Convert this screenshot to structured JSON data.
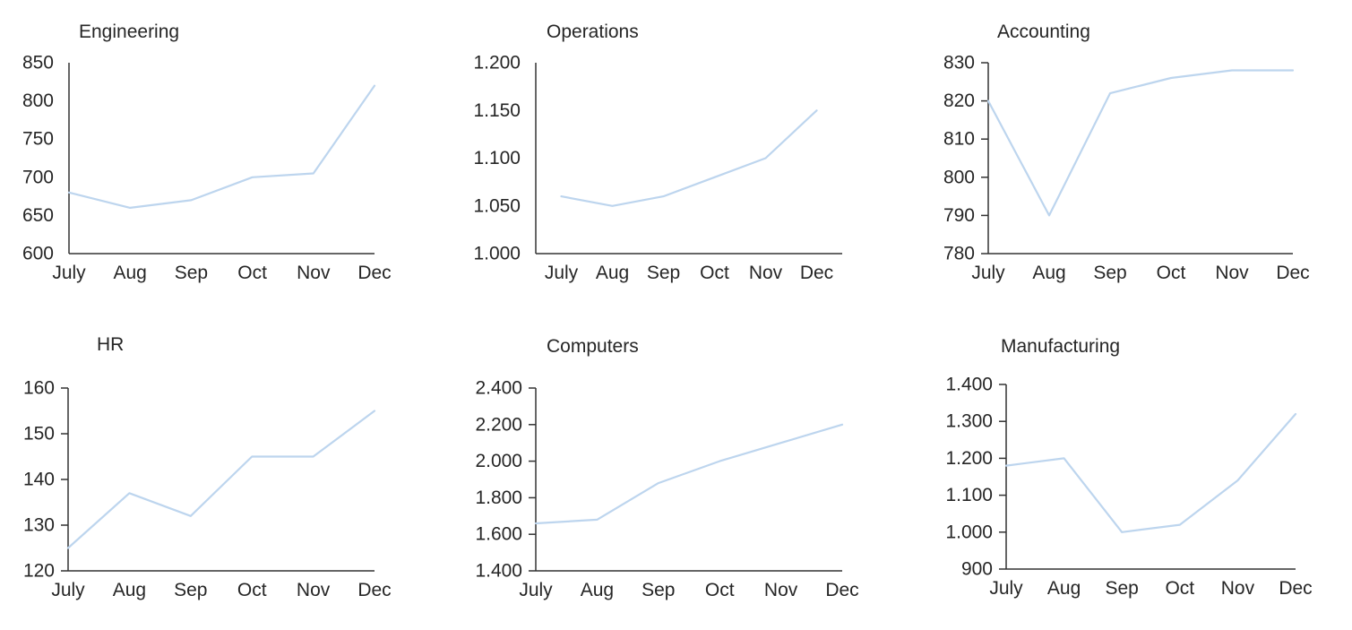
{
  "page": {
    "background": "#ffffff",
    "description": "Dashboard of six small line charts by department, July through December"
  },
  "colors": {
    "line": "#BDD5EE",
    "axis": "#333333",
    "text": "#262626"
  },
  "chart_data": [
    {
      "type": "line",
      "title": "Engineering",
      "categories": [
        "July",
        "Aug",
        "Sep",
        "Oct",
        "Nov",
        "Dec"
      ],
      "values": [
        680,
        660,
        670,
        700,
        705,
        820
      ],
      "ylim": [
        600,
        850
      ],
      "ytick_step": 50,
      "ytick_labels": [
        "600",
        "650",
        "700",
        "750",
        "800",
        "850"
      ],
      "grid": false,
      "legend": false
    },
    {
      "type": "line",
      "title": "Operations",
      "categories": [
        "July",
        "Aug",
        "Sep",
        "Oct",
        "Nov",
        "Dec"
      ],
      "values": [
        1060,
        1050,
        1060,
        1080,
        1100,
        1150
      ],
      "ylim": [
        1000,
        1200
      ],
      "ytick_step": 50,
      "ytick_labels": [
        "1.000",
        "1.050",
        "1.100",
        "1.150",
        "1.200"
      ],
      "grid": false,
      "legend": false
    },
    {
      "type": "line",
      "title": "Accounting",
      "categories": [
        "July",
        "Aug",
        "Sep",
        "Oct",
        "Nov",
        "Dec"
      ],
      "values": [
        820,
        790,
        822,
        826,
        828,
        828
      ],
      "ylim": [
        780,
        830
      ],
      "ytick_step": 10,
      "ytick_labels": [
        "780",
        "790",
        "800",
        "810",
        "820",
        "830"
      ],
      "grid": false,
      "legend": false
    },
    {
      "type": "line",
      "title": "HR",
      "categories": [
        "July",
        "Aug",
        "Sep",
        "Oct",
        "Nov",
        "Dec"
      ],
      "values": [
        125,
        137,
        132,
        145,
        145,
        155
      ],
      "ylim": [
        120,
        160
      ],
      "ytick_step": 10,
      "ytick_labels": [
        "120",
        "130",
        "140",
        "150",
        "160"
      ],
      "grid": false,
      "legend": false
    },
    {
      "type": "line",
      "title": "Computers",
      "categories": [
        "July",
        "Aug",
        "Sep",
        "Oct",
        "Nov",
        "Dec"
      ],
      "values": [
        1660,
        1680,
        1880,
        2000,
        2100,
        2200
      ],
      "ylim": [
        1400,
        2400
      ],
      "ytick_step": 200,
      "ytick_labels": [
        "1.400",
        "1.600",
        "1.800",
        "2.000",
        "2.200",
        "2.400"
      ],
      "grid": false,
      "legend": false
    },
    {
      "type": "line",
      "title": "Manufacturing",
      "categories": [
        "July",
        "Aug",
        "Sep",
        "Oct",
        "Nov",
        "Dec"
      ],
      "values": [
        1180,
        1200,
        1000,
        1020,
        1140,
        1320
      ],
      "ylim": [
        900,
        1400
      ],
      "ytick_step": 100,
      "ytick_labels": [
        "900",
        "1.000",
        "1.100",
        "1.200",
        "1.300",
        "1.400"
      ],
      "grid": false,
      "legend": false
    }
  ]
}
